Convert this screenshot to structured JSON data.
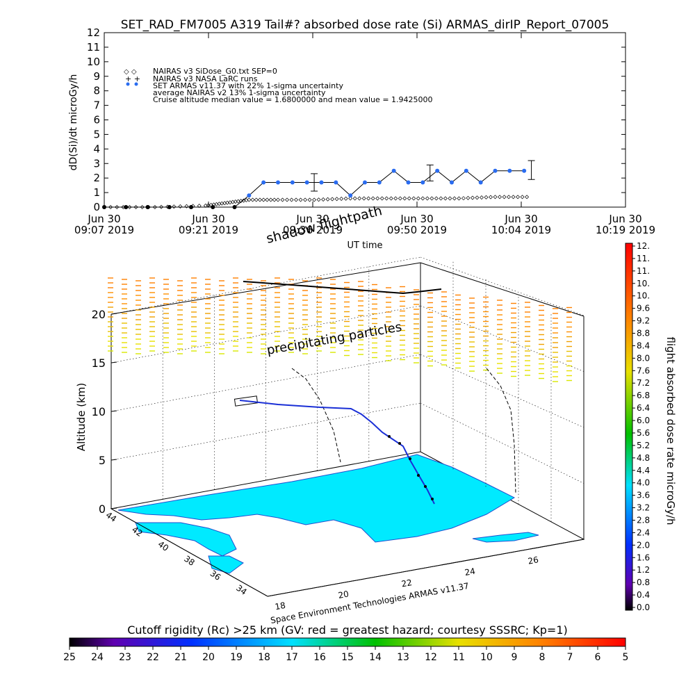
{
  "top_chart": {
    "title": "SET_RAD_FM7005  A319 Tail#? absorbed dose rate (Si) ARMAS_dirIP_Report_07005",
    "ylabel": "dD(Si)/dt microGy/h",
    "xlabel": "UT time",
    "ylim": [
      0,
      12
    ],
    "y_ticks": [
      "0",
      "1",
      "2",
      "3",
      "4",
      "5",
      "6",
      "7",
      "8",
      "9",
      "10",
      "11",
      "12"
    ],
    "x_ticks": [
      {
        "date": "Jun 30",
        "time": "09:07 2019"
      },
      {
        "date": "Jun 30",
        "time": "09:21 2019"
      },
      {
        "date": "Jun 30",
        "time": "09:36 2019"
      },
      {
        "date": "Jun 30",
        "time": "09:50 2019"
      },
      {
        "date": "Jun 30",
        "time": "10:04 2019"
      },
      {
        "date": "Jun 30",
        "time": "10:19 2019"
      }
    ],
    "legend": [
      "NAIRAS v3 SiDose_G0.txt SEP=0",
      "NAIRAS v3 NASA LaRC runs",
      "SET ARMAS v11.37 with 22% 1-sigma uncertainty",
      "average NAIRAS v2 13% 1-sigma uncertainty",
      "Cruise altitude median value = 1.6800000 and mean value = 1.9425000"
    ],
    "shadow_label": "shadow flightpath"
  },
  "chart_data": [
    {
      "type": "line",
      "title": "SET_RAD_FM7005  A319 Tail#? absorbed dose rate (Si) ARMAS_dirIP_Report_07005",
      "xlabel": "UT time",
      "ylabel": "dD(Si)/dt microGy/h",
      "x_range": [
        "09:07",
        "10:19"
      ],
      "ylim": [
        0,
        12
      ],
      "series": [
        {
          "name": "SET ARMAS v11.37 with 22% 1-sigma uncertainty",
          "x": [
            "09:07",
            "09:10",
            "09:13",
            "09:16",
            "09:19",
            "09:22",
            "09:25",
            "09:27",
            "09:29",
            "09:31",
            "09:33",
            "09:35",
            "09:37",
            "09:39",
            "09:41",
            "09:43",
            "09:45",
            "09:47",
            "09:49",
            "09:51",
            "09:53",
            "09:55",
            "09:57",
            "09:59",
            "10:01",
            "10:03",
            "10:05"
          ],
          "y": [
            0,
            0,
            0,
            0,
            0,
            0,
            0,
            0.8,
            1.7,
            1.7,
            1.7,
            1.7,
            1.7,
            1.7,
            0.8,
            1.7,
            1.7,
            2.5,
            1.7,
            1.7,
            2.5,
            1.7,
            2.5,
            1.7,
            2.5,
            2.5,
            2.5
          ]
        },
        {
          "name": "NAIRAS v3 SiDose_G0.txt SEP=0",
          "x": [
            "09:07",
            "09:14",
            "09:21",
            "09:24",
            "09:27",
            "09:31",
            "09:36",
            "09:41",
            "09:46",
            "09:51",
            "09:56",
            "10:01",
            "10:06"
          ],
          "y": [
            0,
            0,
            0.1,
            0.3,
            0.5,
            0.5,
            0.5,
            0.6,
            0.6,
            0.6,
            0.6,
            0.7,
            0.7
          ]
        }
      ],
      "error_bars": [
        {
          "x": "09:36",
          "low": 1.1,
          "high": 2.3
        },
        {
          "x": "09:52",
          "low": 1.8,
          "high": 2.9
        },
        {
          "x": "10:06",
          "low": 1.9,
          "high": 3.2
        }
      ]
    },
    {
      "type": "scatter",
      "title": "",
      "zlabel": "Altitude (km)",
      "z_ticks": [
        "0",
        "5",
        "10",
        "15",
        "20"
      ],
      "lat_ticks": [
        "44",
        "42",
        "40",
        "38",
        "36",
        "34"
      ],
      "lon_ticks": [
        "18",
        "20",
        "22",
        "24",
        "26"
      ],
      "annotations": [
        "precipitating particles"
      ],
      "colorbar": {
        "label": "flight absorbed dose rate microGy/h",
        "ticks": [
          "12.",
          "11.",
          "11.",
          "10.",
          "10.",
          "9.6",
          "9.2",
          "8.8",
          "8.4",
          "8.0",
          "7.6",
          "7.2",
          "6.8",
          "6.4",
          "6.0",
          "5.6",
          "5.2",
          "4.8",
          "4.4",
          "4.0",
          "3.6",
          "3.2",
          "2.8",
          "2.4",
          "2.0",
          "1.6",
          "1.2",
          "0.8",
          "0.4",
          "0.0"
        ]
      },
      "credit": "Space Environment Technologies ARMAS v11.37"
    },
    {
      "type": "heatmap",
      "title": "Cutoff rigidity (Rc) >25 km (GV: red = greatest hazard; courtesy SSSRC; Kp=1)",
      "colorbar_ticks": [
        "25",
        "24",
        "23",
        "22",
        "21",
        "20",
        "19",
        "18",
        "17",
        "16",
        "15",
        "14",
        "13",
        "12",
        "11",
        "10",
        "9",
        "8",
        "7",
        "6",
        "5"
      ]
    }
  ],
  "colors": {
    "armas": "#1a2fd6",
    "armas_point": "#2a6cf0",
    "sea": "#00eaff",
    "coast": "#1f4fd0"
  }
}
